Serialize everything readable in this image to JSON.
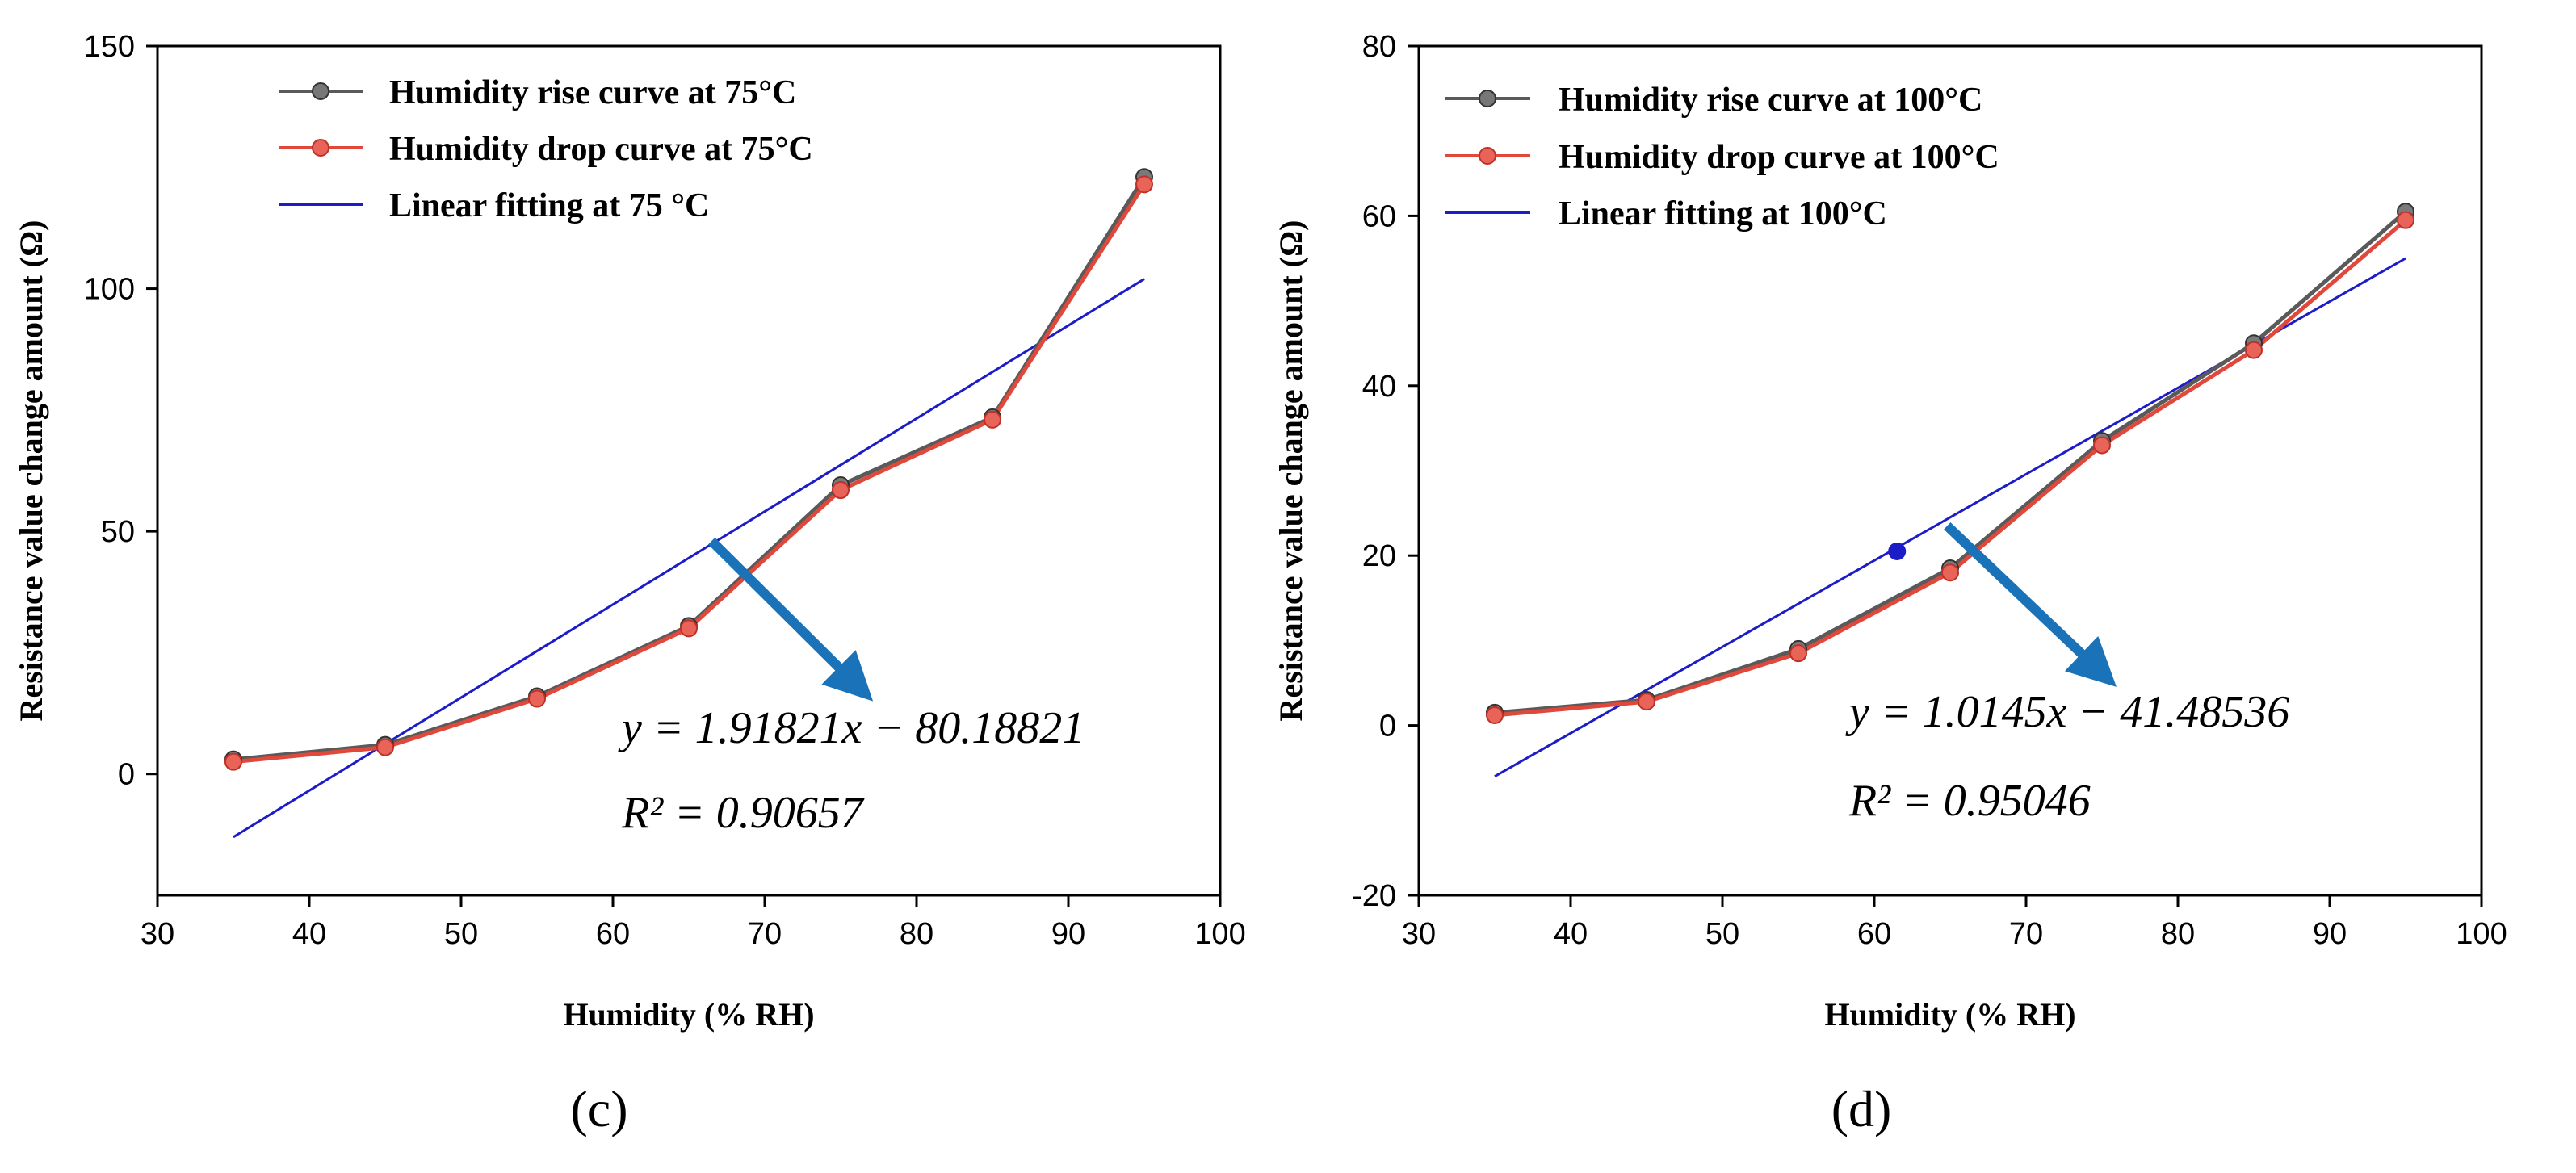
{
  "chart_data": [
    {
      "type": "line",
      "panel_label": "(c)",
      "panel_letter": "c",
      "xlabel": "Humidity (% RH)",
      "ylabel": "Resistance value change amount (Ω)",
      "xlim": [
        30,
        100
      ],
      "ylim": [
        -25,
        150
      ],
      "xticks": [
        30,
        40,
        50,
        60,
        70,
        80,
        90,
        100
      ],
      "yticks": [
        0,
        50,
        100,
        150
      ],
      "grid": false,
      "legend_position": "top-left",
      "series": [
        {
          "name": "Humidity rise curve at 75°C",
          "kind": "markers-line",
          "color": "#5a5a5a",
          "x": [
            35,
            45,
            55,
            65,
            75,
            85,
            95
          ],
          "y": [
            3,
            6,
            16,
            30.5,
            59.5,
            73.5,
            123
          ]
        },
        {
          "name": "Humidity drop curve at 75°C",
          "kind": "markers-line",
          "color": "#e0483c",
          "x": [
            35,
            45,
            55,
            65,
            75,
            85,
            95
          ],
          "y": [
            2.5,
            5.5,
            15.5,
            30,
            58.5,
            73,
            121.5
          ]
        },
        {
          "name": "Linear fitting at 75 °C",
          "kind": "line",
          "color": "#1c1cc8",
          "x": [
            35,
            95
          ],
          "y": [
            -13,
            102
          ]
        }
      ],
      "annotation": {
        "equation": "y = 1.91821x − 80.18821",
        "r2": "R² = 0.90657",
        "arrow_from": [
          66.5,
          48
        ],
        "arrow_to": [
          76,
          18.5
        ],
        "arrow_color": "#1a73b8"
      }
    },
    {
      "type": "line",
      "panel_label": "(d)",
      "panel_letter": "d",
      "xlabel": "Humidity (% RH)",
      "ylabel": "Resistance value change amount (Ω)",
      "xlim": [
        30,
        100
      ],
      "ylim": [
        -20,
        80
      ],
      "xticks": [
        30,
        40,
        50,
        60,
        70,
        80,
        90,
        100
      ],
      "yticks": [
        -20,
        0,
        20,
        40,
        60,
        80
      ],
      "grid": false,
      "legend_position": "top-left",
      "series": [
        {
          "name": "Humidity rise curve at 100°C",
          "kind": "markers-line",
          "color": "#5a5a5a",
          "x": [
            35,
            45,
            55,
            65,
            75,
            85,
            95
          ],
          "y": [
            1.5,
            3,
            9,
            18.5,
            33.5,
            45,
            60.5
          ]
        },
        {
          "name": "Humidity drop curve at 100°C",
          "kind": "markers-line",
          "color": "#e0483c",
          "x": [
            35,
            45,
            55,
            65,
            75,
            85,
            95
          ],
          "y": [
            1.2,
            2.8,
            8.5,
            18,
            33,
            44.2,
            59.5
          ]
        },
        {
          "name": "Linear fitting at 100°C",
          "kind": "line",
          "color": "#1c1cc8",
          "x": [
            35,
            95
          ],
          "y": [
            -6,
            55
          ]
        }
      ],
      "extra_point": {
        "x": 61.5,
        "y": 20.5,
        "color": "#1c1cc8"
      },
      "annotation": {
        "equation": "y = 1.0145x − 41.48536",
        "r2": "R² = 0.95046",
        "arrow_from": [
          64.8,
          23.5
        ],
        "arrow_to": [
          74.8,
          6.5
        ],
        "arrow_color": "#1a73b8"
      }
    }
  ]
}
